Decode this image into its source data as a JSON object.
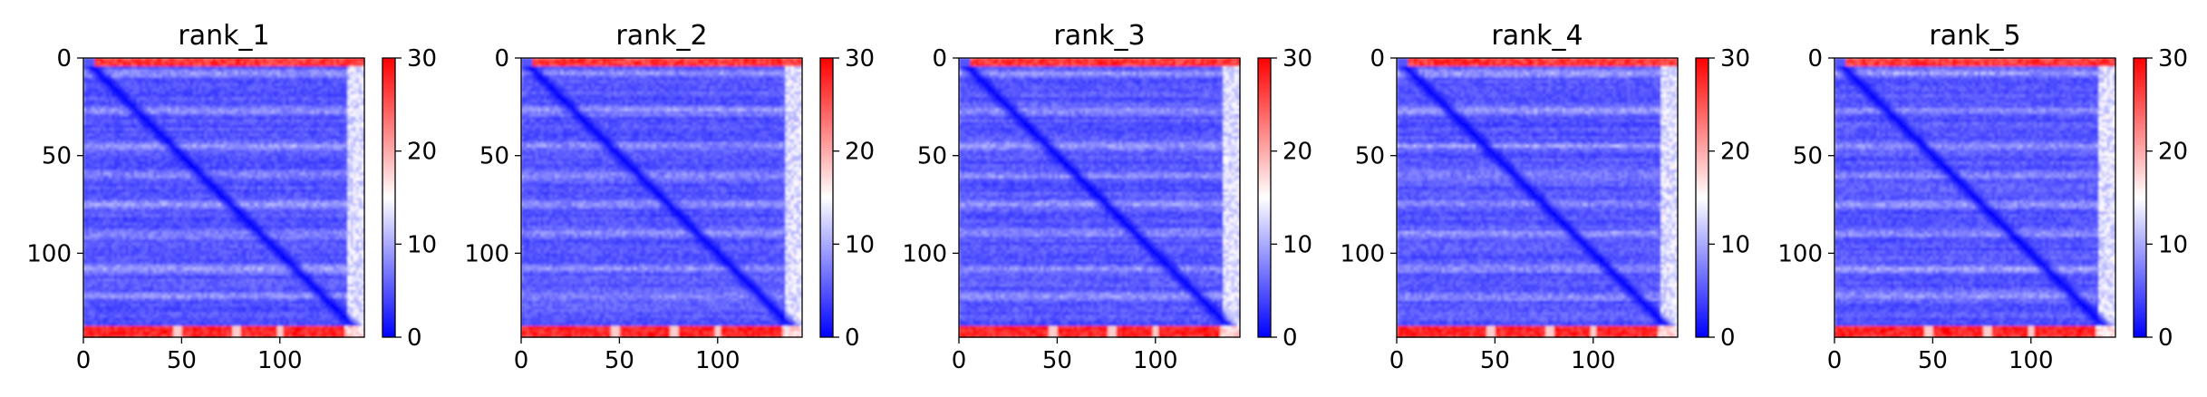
{
  "figure": {
    "n_panels": 5
  },
  "chart_data": [
    {
      "type": "heatmap",
      "title": "rank_1",
      "xlabel": "",
      "ylabel": "",
      "x_ticks": [
        0,
        50,
        100
      ],
      "y_ticks": [
        0,
        50,
        100
      ],
      "xlim": [
        0,
        143
      ],
      "ylim": [
        143,
        0
      ],
      "matrix_size": 143,
      "colorbar": {
        "ticks": [
          0,
          10,
          20,
          30
        ],
        "range": [
          0,
          30
        ],
        "colormap": "bwr",
        "colors": [
          "#0000ff",
          "#ffffff",
          "#ff0000"
        ]
      },
      "pattern": {
        "diagonal_value": 0,
        "background_value": 5,
        "noisy_bands_y": [
          8,
          27,
          45,
          60,
          75,
          90,
          108,
          122
        ],
        "band_value": 9,
        "edge_cols_value": 13,
        "top_rows_value": 27,
        "bottom_rows_value": 28,
        "light_gap_x": [
          48,
          78,
          100
        ]
      }
    },
    {
      "type": "heatmap",
      "title": "rank_2",
      "xlabel": "",
      "ylabel": "",
      "x_ticks": [
        0,
        50,
        100
      ],
      "y_ticks": [
        0,
        50,
        100
      ],
      "xlim": [
        0,
        143
      ],
      "ylim": [
        143,
        0
      ],
      "matrix_size": 143,
      "colorbar": {
        "ticks": [
          0,
          10,
          20,
          30
        ],
        "range": [
          0,
          30
        ],
        "colormap": "bwr",
        "colors": [
          "#0000ff",
          "#ffffff",
          "#ff0000"
        ]
      },
      "pattern": {
        "diagonal_value": 0,
        "background_value": 5,
        "noisy_bands_y": [
          8,
          27,
          45,
          60,
          75,
          90,
          108,
          122
        ],
        "band_value": 9,
        "edge_cols_value": 13,
        "top_rows_value": 27,
        "bottom_rows_value": 28,
        "light_gap_x": [
          48,
          78,
          100
        ]
      }
    },
    {
      "type": "heatmap",
      "title": "rank_3",
      "xlabel": "",
      "ylabel": "",
      "x_ticks": [
        0,
        50,
        100
      ],
      "y_ticks": [
        0,
        50,
        100
      ],
      "xlim": [
        0,
        143
      ],
      "ylim": [
        143,
        0
      ],
      "matrix_size": 143,
      "colorbar": {
        "ticks": [
          0,
          10,
          20,
          30
        ],
        "range": [
          0,
          30
        ],
        "colormap": "bwr",
        "colors": [
          "#0000ff",
          "#ffffff",
          "#ff0000"
        ]
      },
      "pattern": {
        "diagonal_value": 0,
        "background_value": 5,
        "noisy_bands_y": [
          8,
          27,
          45,
          60,
          75,
          90,
          108,
          122
        ],
        "band_value": 9,
        "edge_cols_value": 13,
        "top_rows_value": 27,
        "bottom_rows_value": 28,
        "light_gap_x": [
          48,
          78,
          100
        ]
      }
    },
    {
      "type": "heatmap",
      "title": "rank_4",
      "xlabel": "",
      "ylabel": "",
      "x_ticks": [
        0,
        50,
        100
      ],
      "y_ticks": [
        0,
        50,
        100
      ],
      "xlim": [
        0,
        143
      ],
      "ylim": [
        143,
        0
      ],
      "matrix_size": 143,
      "colorbar": {
        "ticks": [
          0,
          10,
          20,
          30
        ],
        "range": [
          0,
          30
        ],
        "colormap": "bwr",
        "colors": [
          "#0000ff",
          "#ffffff",
          "#ff0000"
        ]
      },
      "pattern": {
        "diagonal_value": 0,
        "background_value": 5,
        "noisy_bands_y": [
          8,
          27,
          45,
          60,
          75,
          90,
          108,
          122
        ],
        "band_value": 9,
        "edge_cols_value": 13,
        "top_rows_value": 27,
        "bottom_rows_value": 28,
        "light_gap_x": [
          48,
          78,
          100
        ]
      }
    },
    {
      "type": "heatmap",
      "title": "rank_5",
      "xlabel": "",
      "ylabel": "",
      "x_ticks": [
        0,
        50,
        100
      ],
      "y_ticks": [
        0,
        50,
        100
      ],
      "xlim": [
        0,
        143
      ],
      "ylim": [
        143,
        0
      ],
      "matrix_size": 143,
      "colorbar": {
        "ticks": [
          0,
          10,
          20,
          30
        ],
        "range": [
          0,
          30
        ],
        "colormap": "bwr",
        "colors": [
          "#0000ff",
          "#ffffff",
          "#ff0000"
        ]
      },
      "pattern": {
        "diagonal_value": 0,
        "background_value": 5,
        "noisy_bands_y": [
          8,
          27,
          45,
          60,
          75,
          90,
          108,
          122
        ],
        "band_value": 9,
        "edge_cols_value": 13,
        "top_rows_value": 27,
        "bottom_rows_value": 28,
        "light_gap_x": [
          48,
          78,
          100
        ]
      }
    }
  ]
}
